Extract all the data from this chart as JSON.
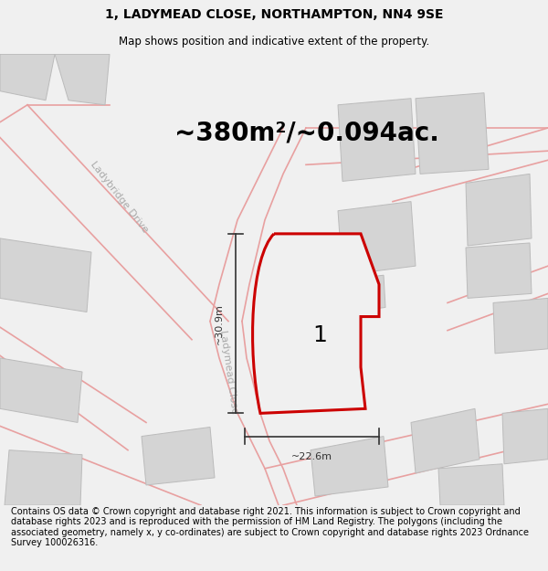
{
  "title_line1": "1, LADYMEAD CLOSE, NORTHAMPTON, NN4 9SE",
  "title_line2": "Map shows position and indicative extent of the property.",
  "area_text": "~380m²/~0.094ac.",
  "dim_horizontal": "~22.6m",
  "dim_vertical": "~30.9m",
  "plot_label": "1",
  "footer_text": "Contains OS data © Crown copyright and database right 2021. This information is subject to Crown copyright and database rights 2023 and is reproduced with the permission of HM Land Registry. The polygons (including the associated geometry, namely x, y co-ordinates) are subject to Crown copyright and database rights 2023 Ordnance Survey 100026316.",
  "bg_color": "#f0f0f0",
  "map_bg": "#ffffff",
  "road_outline_color": "#e8a0a0",
  "building_color": "#d4d4d4",
  "building_edge": "#bbbbbb",
  "plot_fill": "#f0f0f0",
  "plot_edge": "#cc0000",
  "dim_color": "#333333",
  "text_color": "#000000",
  "street_label_color": "#aaaaaa",
  "title_fontsize": 10,
  "subtitle_fontsize": 8.5,
  "area_fontsize": 20,
  "dim_fontsize": 8,
  "footer_fontsize": 7,
  "plot_label_fontsize": 18,
  "street_fontsize": 8
}
